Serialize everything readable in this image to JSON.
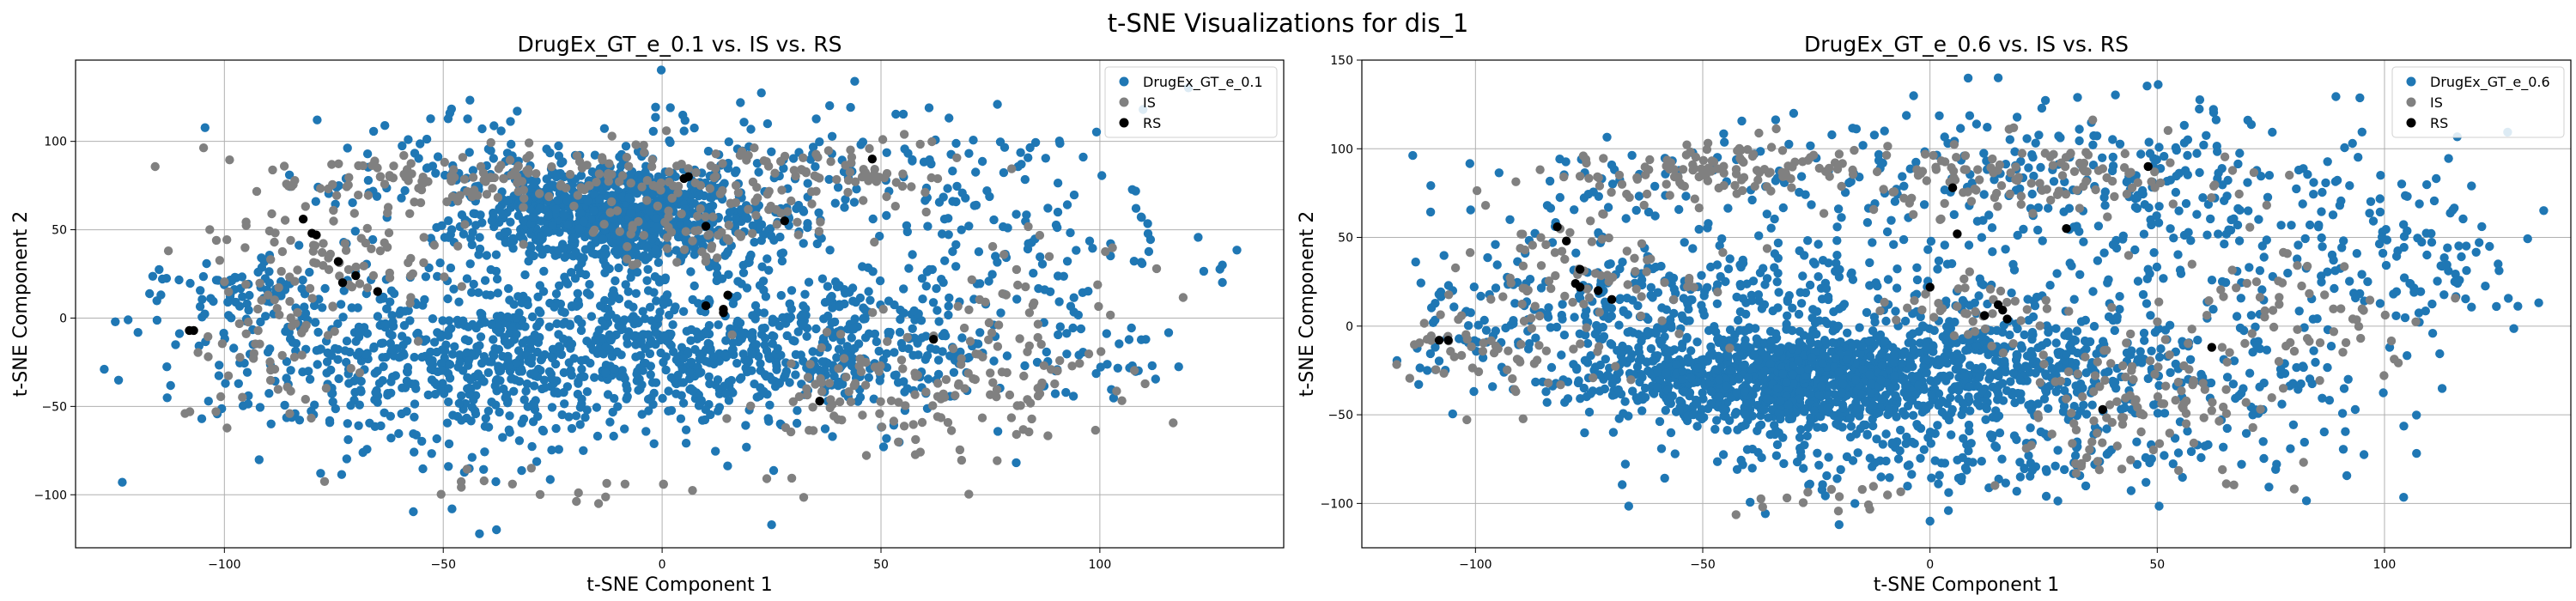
{
  "figure": {
    "title": "t-SNE Visualizations for dis_1"
  },
  "chart_data": [
    {
      "type": "scatter",
      "title": "DrugEx_GT_e_0.1 vs. IS vs. RS",
      "xlabel": "t-SNE Component 1",
      "ylabel": "t-SNE Component 2",
      "xlim": [
        -134,
        142
      ],
      "ylim": [
        -130,
        146
      ],
      "xticks": [
        -100,
        -50,
        0,
        50,
        100
      ],
      "xtick_labels": [
        "−100",
        "−50",
        "0",
        "50",
        "100"
      ],
      "yticks": [
        -100,
        -50,
        0,
        50,
        100
      ],
      "yticks_labels": [
        "−100",
        "−50",
        "0",
        "50",
        "100"
      ],
      "grid": true,
      "legend_position": "top-right",
      "series": [
        {
          "name": "DrugEx_GT_e_0.1",
          "color": "#1f77b4",
          "clusters": [
            {
              "cx": -10,
              "cy": 58,
              "sx": 18,
              "sy": 14,
              "n": 900
            },
            {
              "cx": -25,
              "cy": -20,
              "sx": 30,
              "sy": 25,
              "n": 700
            },
            {
              "cx": -60,
              "cy": -30,
              "sx": 28,
              "sy": 30,
              "n": 220
            },
            {
              "cx": 20,
              "cy": -20,
              "sx": 22,
              "sy": 22,
              "n": 260
            },
            {
              "cx": 50,
              "cy": -10,
              "sx": 15,
              "sy": 20,
              "n": 160
            },
            {
              "cx": 80,
              "cy": 50,
              "sx": 22,
              "sy": 35,
              "n": 120
            },
            {
              "cx": -95,
              "cy": 15,
              "sx": 10,
              "sy": 10,
              "n": 70
            },
            {
              "cx": -40,
              "cy": 80,
              "sx": 25,
              "sy": 20,
              "n": 120
            },
            {
              "cx": 40,
              "cy": 90,
              "sx": 25,
              "sy": 20,
              "n": 90
            },
            {
              "cx": 100,
              "cy": -20,
              "sx": 12,
              "sy": 20,
              "n": 40
            }
          ],
          "outliers": [
            [
              -122,
              -1
            ],
            [
              128,
              30
            ],
            [
              -58,
              101
            ],
            [
              25,
              -117
            ],
            [
              44,
              134
            ],
            [
              -48,
              -108
            ]
          ]
        },
        {
          "name": "IS",
          "color": "#808080",
          "clusters": [
            {
              "cx": -40,
              "cy": 80,
              "sx": 25,
              "sy": 8,
              "n": 140
            },
            {
              "cx": 30,
              "cy": 80,
              "sx": 20,
              "sy": 12,
              "n": 110
            },
            {
              "cx": 55,
              "cy": -40,
              "sx": 18,
              "sy": 18,
              "n": 110
            },
            {
              "cx": 85,
              "cy": -10,
              "sx": 12,
              "sy": 30,
              "n": 70
            },
            {
              "cx": -75,
              "cy": 35,
              "sx": 15,
              "sy": 20,
              "n": 90
            },
            {
              "cx": -90,
              "cy": -20,
              "sx": 12,
              "sy": 20,
              "n": 50
            },
            {
              "cx": 10,
              "cy": 50,
              "sx": 15,
              "sy": 10,
              "n": 60
            },
            {
              "cx": -20,
              "cy": -95,
              "sx": 20,
              "sy": 5,
              "n": 20
            }
          ],
          "outliers": []
        },
        {
          "name": "RS",
          "color": "#000000",
          "clusters": [],
          "outliers": [
            [
              -108,
              -7
            ],
            [
              -107,
              -7
            ],
            [
              -82,
              56
            ],
            [
              -80,
              48
            ],
            [
              -79,
              47
            ],
            [
              -74,
              32
            ],
            [
              -73,
              20
            ],
            [
              -70,
              24
            ],
            [
              -65,
              15
            ],
            [
              5,
              79
            ],
            [
              6,
              80
            ],
            [
              10,
              52
            ],
            [
              10,
              7
            ],
            [
              14,
              3
            ],
            [
              15,
              13
            ],
            [
              14,
              5
            ],
            [
              28,
              55
            ],
            [
              36,
              -47
            ],
            [
              48,
              90
            ],
            [
              62,
              -12
            ]
          ]
        }
      ]
    },
    {
      "type": "scatter",
      "title": "DrugEx_GT_e_0.6 vs. IS vs. RS",
      "xlabel": "t-SNE Component 1",
      "ylabel": "t-SNE Component 2",
      "xlim": [
        -125,
        141
      ],
      "ylim": [
        -125,
        150
      ],
      "xticks": [
        -100,
        -50,
        0,
        50,
        100
      ],
      "xtick_labels": [
        "−100",
        "−50",
        "0",
        "50",
        "100"
      ],
      "yticks": [
        -100,
        -50,
        0,
        50,
        100,
        150
      ],
      "yticks_labels": [
        "−100",
        "−50",
        "0",
        "50",
        "100",
        "150"
      ],
      "grid": true,
      "legend_position": "top-right",
      "series": [
        {
          "name": "DrugEx_GT_e_0.6",
          "color": "#1f77b4",
          "clusters": [
            {
              "cx": -30,
              "cy": -30,
              "sx": 22,
              "sy": 12,
              "n": 1100
            },
            {
              "cx": 20,
              "cy": -20,
              "sx": 20,
              "sy": 15,
              "n": 350
            },
            {
              "cx": -40,
              "cy": 20,
              "sx": 30,
              "sy": 20,
              "n": 300
            },
            {
              "cx": -10,
              "cy": -70,
              "sx": 30,
              "sy": 15,
              "n": 200
            },
            {
              "cx": 40,
              "cy": 80,
              "sx": 30,
              "sy": 25,
              "n": 220
            },
            {
              "cx": 80,
              "cy": 50,
              "sx": 25,
              "sy": 30,
              "n": 160
            },
            {
              "cx": -80,
              "cy": 0,
              "sx": 20,
              "sy": 25,
              "n": 150
            },
            {
              "cx": -45,
              "cy": 85,
              "sx": 25,
              "sy": 15,
              "n": 90
            },
            {
              "cx": 65,
              "cy": -40,
              "sx": 20,
              "sy": 25,
              "n": 120
            },
            {
              "cx": 110,
              "cy": 20,
              "sx": 10,
              "sy": 20,
              "n": 40
            }
          ],
          "outliers": [
            [
              -30,
              120
            ],
            [
              -10,
              110
            ],
            [
              125,
              35
            ],
            [
              -105,
              20
            ],
            [
              15,
              140
            ],
            [
              -20,
              -112
            ],
            [
              0,
              -110
            ]
          ]
        },
        {
          "name": "IS",
          "color": "#808080",
          "clusters": [
            {
              "cx": -45,
              "cy": 88,
              "sx": 18,
              "sy": 8,
              "n": 110
            },
            {
              "cx": 20,
              "cy": 85,
              "sx": 25,
              "sy": 10,
              "n": 130
            },
            {
              "cx": 50,
              "cy": -45,
              "sx": 15,
              "sy": 20,
              "n": 120
            },
            {
              "cx": 80,
              "cy": 10,
              "sx": 15,
              "sy": 20,
              "n": 60
            },
            {
              "cx": -75,
              "cy": 30,
              "sx": 15,
              "sy": 25,
              "n": 90
            },
            {
              "cx": -95,
              "cy": -15,
              "sx": 10,
              "sy": 15,
              "n": 50
            },
            {
              "cx": 10,
              "cy": 10,
              "sx": 12,
              "sy": 10,
              "n": 40
            },
            {
              "cx": -25,
              "cy": -98,
              "sx": 10,
              "sy": 4,
              "n": 15
            }
          ],
          "outliers": []
        },
        {
          "name": "RS",
          "color": "#000000",
          "clusters": [],
          "outliers": [
            [
              -108,
              -8
            ],
            [
              -106,
              -8
            ],
            [
              -82,
              56
            ],
            [
              -80,
              48
            ],
            [
              -77,
              32
            ],
            [
              -78,
              24
            ],
            [
              -77,
              22
            ],
            [
              -73,
              20
            ],
            [
              -70,
              15
            ],
            [
              5,
              78
            ],
            [
              6,
              52
            ],
            [
              12,
              6
            ],
            [
              15,
              12
            ],
            [
              16,
              9
            ],
            [
              17,
              4
            ],
            [
              30,
              55
            ],
            [
              38,
              -47
            ],
            [
              48,
              90
            ],
            [
              62,
              -12
            ],
            [
              0,
              22
            ]
          ]
        }
      ]
    }
  ]
}
